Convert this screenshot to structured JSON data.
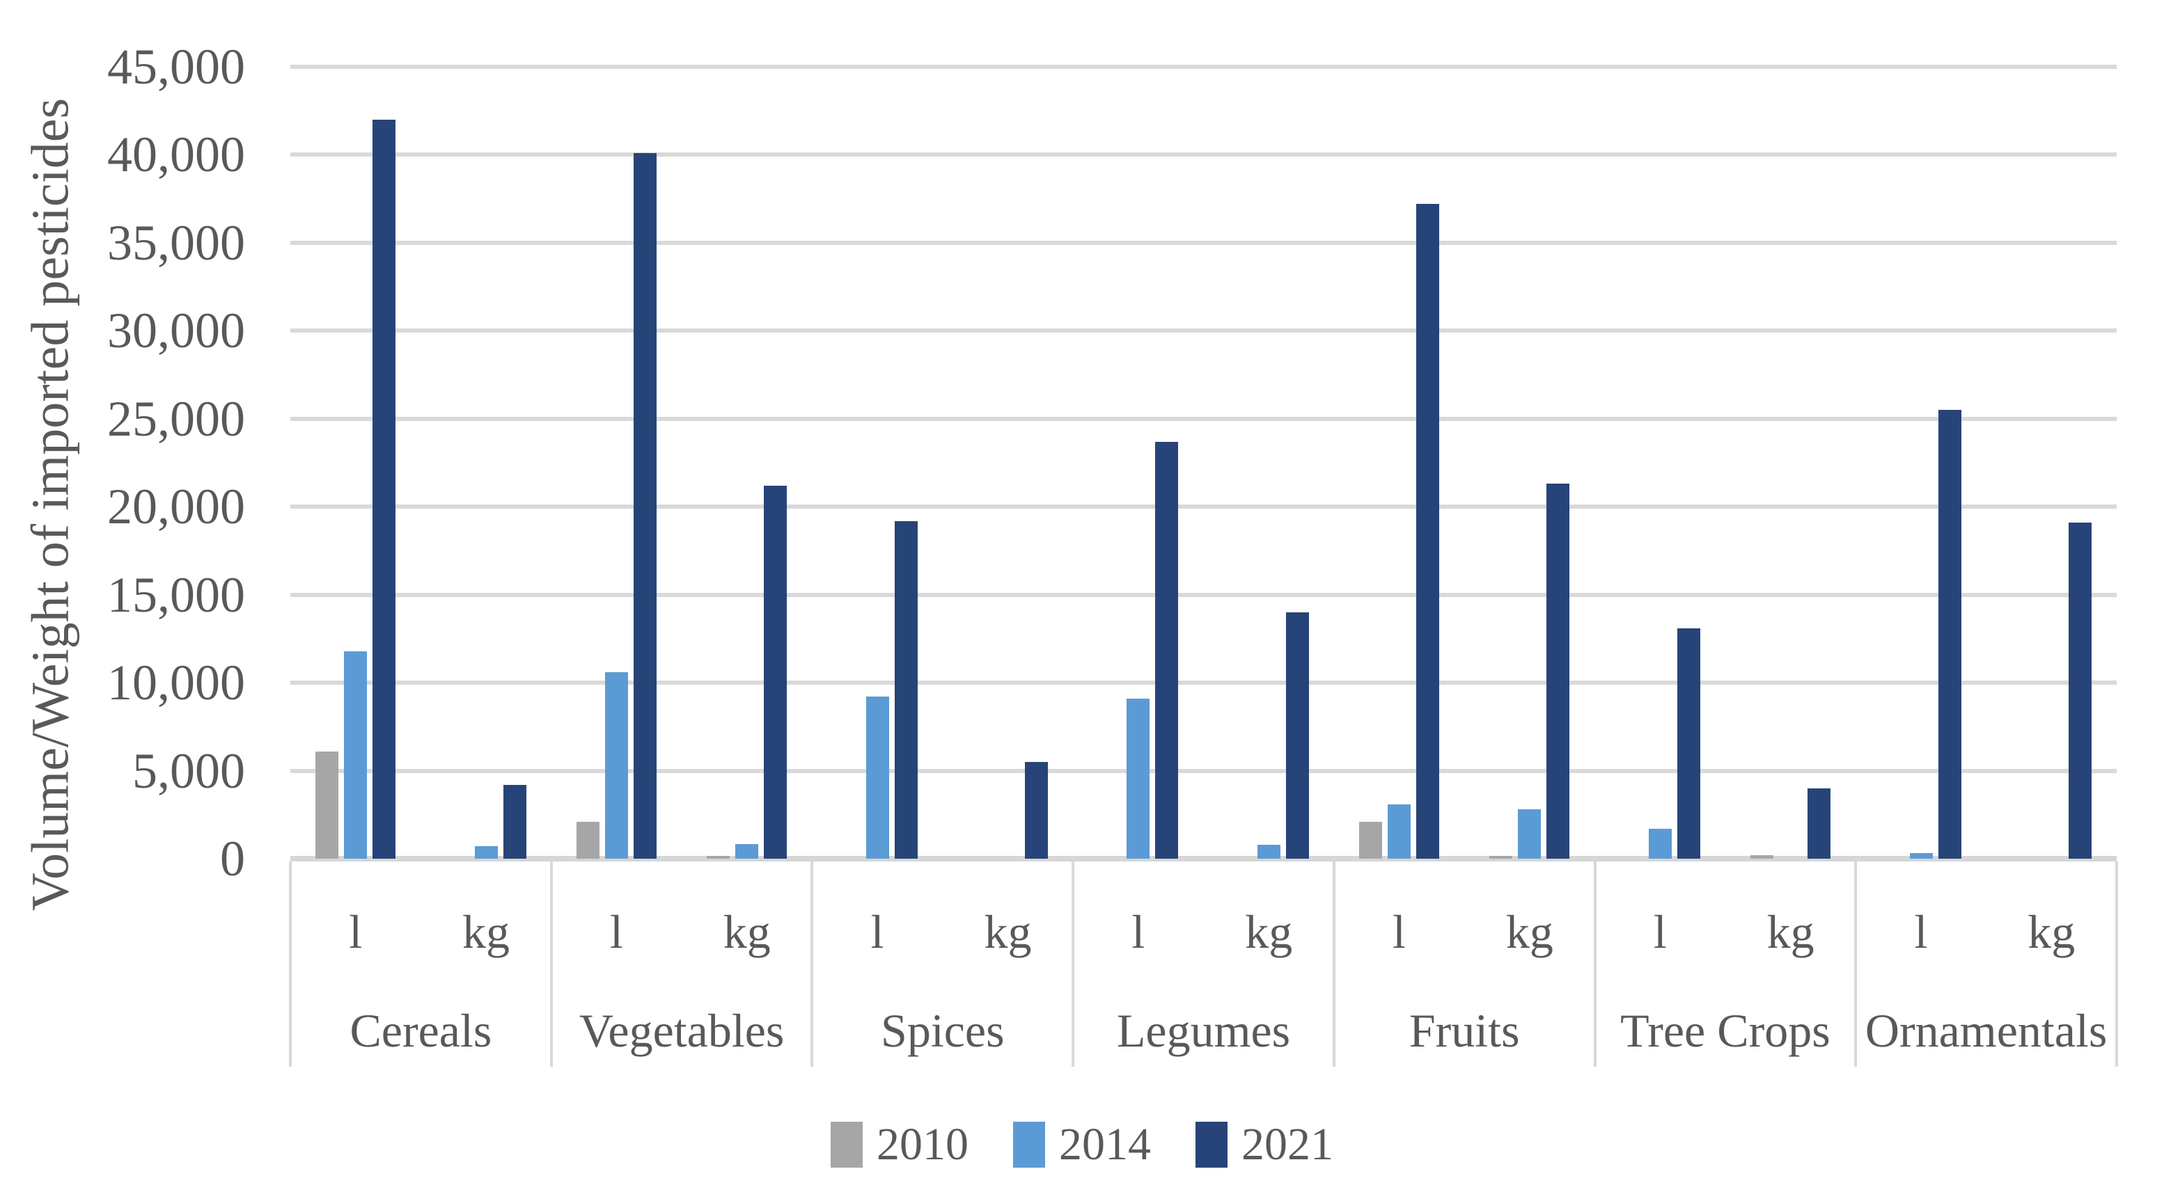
{
  "chart_data": {
    "type": "bar",
    "title": "",
    "ylabel": "Volume/Weight of imported pesticides",
    "xlabel": "",
    "ylim": [
      0,
      45000
    ],
    "ytick_step": 5000,
    "ytick_labels": [
      "0",
      "5,000",
      "10,000",
      "15,000",
      "20,000",
      "25,000",
      "30,000",
      "35,000",
      "40,000",
      "45,000"
    ],
    "grid": true,
    "legend_position": "bottom",
    "categories": [
      "Cereals",
      "Vegetables",
      "Spices",
      "Legumes",
      "Fruits",
      "Tree Crops",
      "Ornamentals"
    ],
    "subcategories": [
      "l",
      "kg"
    ],
    "series": [
      {
        "name": "2010",
        "color": "#A6A6A6",
        "values": [
          6100,
          0,
          2100,
          160,
          0,
          0,
          0,
          0,
          2100,
          160,
          0,
          200,
          0,
          0
        ]
      },
      {
        "name": "2014",
        "color": "#5B9BD5",
        "values": [
          11800,
          700,
          10600,
          850,
          9200,
          0,
          9100,
          800,
          3100,
          2800,
          1700,
          0,
          300,
          0
        ]
      },
      {
        "name": "2021",
        "color": "#264478",
        "values": [
          42000,
          4200,
          40100,
          21200,
          19200,
          5500,
          23700,
          14000,
          37200,
          21300,
          13100,
          4000,
          25500,
          19100
        ]
      }
    ]
  },
  "colors": {
    "text": "#595959",
    "gridline": "#D9D9D9",
    "axis_line": "#D6D6D6",
    "background": "#FFFFFF"
  }
}
